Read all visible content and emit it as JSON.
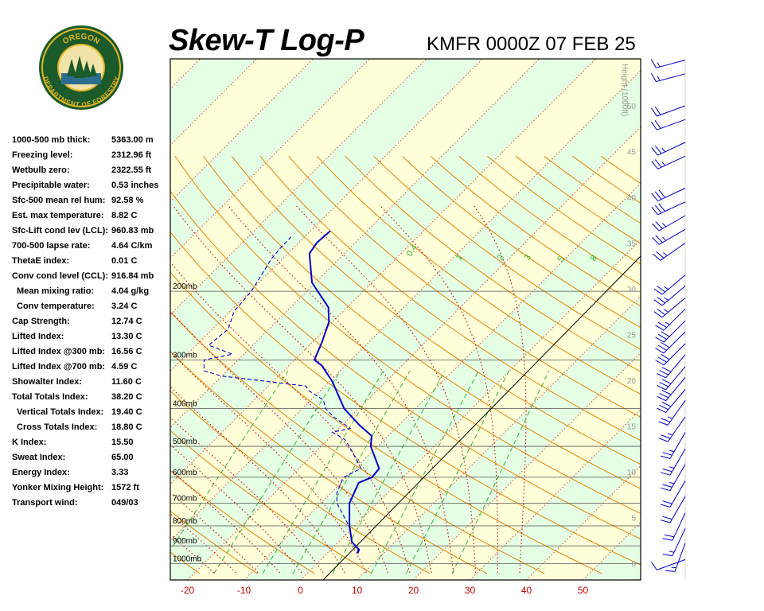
{
  "header": {
    "title": "Skew-T Log-P",
    "station_time": "KMFR 0000Z 07 FEB 25"
  },
  "logo": {
    "top_text": "OREGON",
    "bottom_text": "DEPARTMENT OF FORESTRY"
  },
  "indices": [
    {
      "label": "1000-500 mb thick:",
      "value": "5363.00 m",
      "indent": false
    },
    {
      "label": "Freezing level:",
      "value": "2312.96 ft",
      "indent": false
    },
    {
      "label": "Wetbulb zero:",
      "value": "2322.55 ft",
      "indent": false
    },
    {
      "label": "Precipitable water:",
      "value": "0.53 inches",
      "indent": false
    },
    {
      "label": "Sfc-500 mean rel hum:",
      "value": "92.58 %",
      "indent": false
    },
    {
      "label": "Est. max temperature:",
      "value": "8.82 C",
      "indent": false
    },
    {
      "label": "Sfc-Lift cond lev (LCL):",
      "value": "960.83 mb",
      "indent": false
    },
    {
      "label": "700-500 lapse rate:",
      "value": "4.64 C/km",
      "indent": false
    },
    {
      "label": "ThetaE index:",
      "value": "0.01 C",
      "indent": false
    },
    {
      "label": "Conv cond level (CCL):",
      "value": "916.84 mb",
      "indent": false
    },
    {
      "label": "Mean mixing ratio:",
      "value": "4.04 g/kg",
      "indent": true
    },
    {
      "label": "Conv temperature:",
      "value": "3.24 C",
      "indent": true
    },
    {
      "label": "Cap Strength:",
      "value": "12.74 C",
      "indent": false
    },
    {
      "label": "Lifted Index:",
      "value": "13.30 C",
      "indent": false
    },
    {
      "label": "Lifted Index @300 mb:",
      "value": "16.56 C",
      "indent": false
    },
    {
      "label": "Lifted Index @700 mb:",
      "value": "4.59 C",
      "indent": false
    },
    {
      "label": "Showalter Index:",
      "value": "11.60 C",
      "indent": false
    },
    {
      "label": "Total Totals Index:",
      "value": "38.20 C",
      "indent": false
    },
    {
      "label": "Vertical Totals Index:",
      "value": "19.40 C",
      "indent": true
    },
    {
      "label": "Cross Totals Index:",
      "value": "18.80 C",
      "indent": true
    },
    {
      "label": "K Index:",
      "value": "15.50",
      "indent": false
    },
    {
      "label": "Sweat Index:",
      "value": "65.00",
      "indent": false
    },
    {
      "label": "Energy Index:",
      "value": "3.33",
      "indent": false
    },
    {
      "label": "Yonker Mixing Height:",
      "value": "1572 ft",
      "indent": false
    },
    {
      "label": "Transport wind:",
      "value": "049/03",
      "indent": false
    }
  ],
  "chart_data": {
    "type": "line",
    "diagram": "skew-t log-p",
    "x_ticks": [
      -20,
      -10,
      0,
      10,
      20,
      30,
      40,
      50
    ],
    "x_tick_labels": [
      "-20",
      "-10",
      "0",
      "10",
      "20",
      "30",
      "40",
      "50"
    ],
    "pressure_levels": [
      200,
      300,
      400,
      500,
      600,
      700,
      800,
      900,
      1000
    ],
    "pressure_labels": [
      "200mb",
      "300mb",
      "400mb",
      "500mb",
      "600mb",
      "700mb",
      "800mb",
      "900mb",
      "1000mb"
    ],
    "height_axis_title": "Height (1000ft)",
    "height_ticks": [
      0,
      5,
      10,
      15,
      20,
      25,
      30,
      35,
      40,
      45,
      50
    ],
    "mixing_ratio_labels": [
      "0.4",
      "1",
      "2",
      "3",
      "5",
      "8"
    ],
    "grid": true,
    "colors": {
      "temperature": "#0000cc",
      "dewpoint": "#0000cc",
      "isotherm": "#e1463c",
      "dry_adiabat": "#e68200",
      "moist_adiabat": "#d20000",
      "mixing_ratio": "#32b432",
      "isobar": "#555555",
      "band_yellow": "#ffffd9",
      "band_green": "#e4ffe4",
      "wind_barb": "#0000cc"
    },
    "series": [
      {
        "name": "Temperature",
        "style": "solid",
        "points": [
          {
            "p": 940,
            "t": 5.4
          },
          {
            "p": 920,
            "t": 5.0
          },
          {
            "p": 880,
            "t": 2.4
          },
          {
            "p": 800,
            "t": -0.9
          },
          {
            "p": 700,
            "t": -4.9
          },
          {
            "p": 620,
            "t": -6.9
          },
          {
            "p": 600,
            "t": -5.5
          },
          {
            "p": 570,
            "t": -5.8
          },
          {
            "p": 500,
            "t": -11.2
          },
          {
            "p": 470,
            "t": -12.9
          },
          {
            "p": 440,
            "t": -17.1
          },
          {
            "p": 400,
            "t": -22.6
          },
          {
            "p": 340,
            "t": -29.6
          },
          {
            "p": 310,
            "t": -34.2
          },
          {
            "p": 300,
            "t": -36.5
          },
          {
            "p": 270,
            "t": -38.3
          },
          {
            "p": 240,
            "t": -40.6
          },
          {
            "p": 220,
            "t": -43.3
          },
          {
            "p": 190,
            "t": -50.6
          },
          {
            "p": 160,
            "t": -56.2
          },
          {
            "p": 150,
            "t": -56.8
          },
          {
            "p": 140,
            "t": -56.5
          }
        ]
      },
      {
        "name": "Dewpoint",
        "style": "dashed",
        "points": [
          {
            "p": 940,
            "t": 5.3
          },
          {
            "p": 920,
            "t": 4.8
          },
          {
            "p": 880,
            "t": 2.4
          },
          {
            "p": 800,
            "t": -1.0
          },
          {
            "p": 700,
            "t": -7.1
          },
          {
            "p": 660,
            "t": -8.9
          },
          {
            "p": 610,
            "t": -10.3
          },
          {
            "p": 600,
            "t": -10.5
          },
          {
            "p": 570,
            "t": -9.0
          },
          {
            "p": 520,
            "t": -13.2
          },
          {
            "p": 500,
            "t": -15.0
          },
          {
            "p": 480,
            "t": -17.0
          },
          {
            "p": 460,
            "t": -20.5
          },
          {
            "p": 450,
            "t": -18.0
          },
          {
            "p": 420,
            "t": -23.0
          },
          {
            "p": 400,
            "t": -25.9
          },
          {
            "p": 380,
            "t": -27.8
          },
          {
            "p": 360,
            "t": -32.0
          },
          {
            "p": 350,
            "t": -33.4
          },
          {
            "p": 330,
            "t": -50.0
          },
          {
            "p": 320,
            "t": -54.1
          },
          {
            "p": 300,
            "t": -56.0
          },
          {
            "p": 290,
            "t": -52.0
          },
          {
            "p": 275,
            "t": -57.8
          },
          {
            "p": 250,
            "t": -57.2
          },
          {
            "p": 225,
            "t": -59.3
          },
          {
            "p": 200,
            "t": -59.8
          },
          {
            "p": 180,
            "t": -61.0
          },
          {
            "p": 165,
            "t": -62.0
          },
          {
            "p": 155,
            "t": -62.3
          },
          {
            "p": 145,
            "t": -62.4
          }
        ]
      }
    ],
    "wind_barbs": [
      {
        "h": 0.4,
        "dir": 250,
        "kt": 10
      },
      {
        "h": 2.2,
        "dir": 200,
        "kt": 15
      },
      {
        "h": 3.8,
        "dir": 205,
        "kt": 15
      },
      {
        "h": 5.5,
        "dir": 205,
        "kt": 20
      },
      {
        "h": 7.3,
        "dir": 210,
        "kt": 20
      },
      {
        "h": 9.0,
        "dir": 210,
        "kt": 20
      },
      {
        "h": 10.8,
        "dir": 210,
        "kt": 25
      },
      {
        "h": 12.5,
        "dir": 210,
        "kt": 25
      },
      {
        "h": 14.3,
        "dir": 210,
        "kt": 25
      },
      {
        "h": 16.0,
        "dir": 215,
        "kt": 25
      },
      {
        "h": 17.8,
        "dir": 215,
        "kt": 25
      },
      {
        "h": 19.0,
        "dir": 220,
        "kt": 30
      },
      {
        "h": 20.3,
        "dir": 220,
        "kt": 30
      },
      {
        "h": 21.5,
        "dir": 220,
        "kt": 30
      },
      {
        "h": 22.8,
        "dir": 220,
        "kt": 30
      },
      {
        "h": 24.0,
        "dir": 225,
        "kt": 30
      },
      {
        "h": 25.3,
        "dir": 225,
        "kt": 30
      },
      {
        "h": 26.5,
        "dir": 225,
        "kt": 30
      },
      {
        "h": 27.8,
        "dir": 225,
        "kt": 25
      },
      {
        "h": 29.0,
        "dir": 230,
        "kt": 25
      },
      {
        "h": 30.3,
        "dir": 230,
        "kt": 25
      },
      {
        "h": 31.5,
        "dir": 230,
        "kt": 25
      },
      {
        "h": 35.0,
        "dir": 235,
        "kt": 25
      },
      {
        "h": 36.5,
        "dir": 240,
        "kt": 25
      },
      {
        "h": 38.0,
        "dir": 240,
        "kt": 25
      },
      {
        "h": 39.5,
        "dir": 245,
        "kt": 30
      },
      {
        "h": 41.0,
        "dir": 245,
        "kt": 30
      },
      {
        "h": 44.5,
        "dir": 245,
        "kt": 25
      },
      {
        "h": 46.0,
        "dir": 245,
        "kt": 25
      },
      {
        "h": 48.5,
        "dir": 250,
        "kt": 20
      },
      {
        "h": 50.0,
        "dir": 250,
        "kt": 20
      },
      {
        "h": 53.5,
        "dir": 255,
        "kt": 15
      },
      {
        "h": 55.0,
        "dir": 255,
        "kt": 15
      }
    ]
  }
}
